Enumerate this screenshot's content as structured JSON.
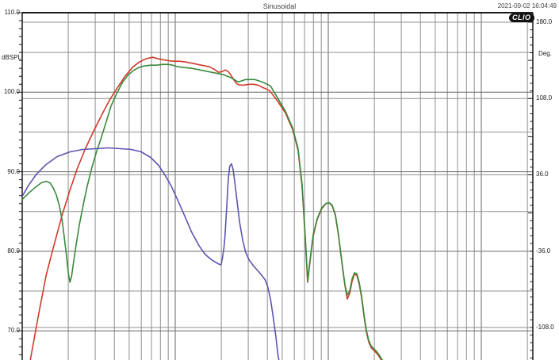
{
  "header": {
    "title": "Sinusoidal",
    "datetime": "2021-09-02 16:04:49",
    "logo": "CLIO"
  },
  "chart_data": {
    "type": "line",
    "title": "Sinusoidal",
    "x_axis": {
      "scale": "log",
      "unit": "Hz",
      "min_hz": 10,
      "max_hz": 21900,
      "decade_lines_hz": [
        100,
        1000,
        10000
      ],
      "minor_multiples": [
        2,
        3,
        4,
        5,
        6,
        7,
        8,
        9
      ],
      "extra_line_hz": 20000,
      "tick_labels_visible": false
    },
    "y_left": {
      "label": "dBSPL",
      "unit": "dB SPL",
      "visible_range": [
        66,
        110
      ],
      "tick_values": [
        110,
        100,
        90,
        80,
        70
      ],
      "tick_labels": [
        "110.0",
        "100.0",
        "90.0",
        "80.0",
        "70.0"
      ],
      "grid_step_db": 5,
      "minor_tick_db": 1
    },
    "y_right": {
      "label": "Deg.",
      "unit": "degrees",
      "visible_range": [
        -150,
        180
      ],
      "tick_values": [
        180,
        108,
        36,
        -36,
        -108
      ],
      "tick_labels": [
        "180.0",
        "108.0",
        "36.0",
        "-36.0",
        "-108.0"
      ],
      "grid_step_deg": 72,
      "minor_tick_deg": 7.2
    },
    "grid": "on",
    "legend": "none",
    "series": [
      {
        "name": "response-red",
        "color": "#cf3b2a",
        "points": [
          [
            11.3,
            66.3
          ],
          [
            12.7,
            71.7
          ],
          [
            14.3,
            76.9
          ],
          [
            16.1,
            80.7
          ],
          [
            18.2,
            84.5
          ],
          [
            20.5,
            87.7
          ],
          [
            23,
            90.5
          ],
          [
            26,
            93
          ],
          [
            29.3,
            95.1
          ],
          [
            33,
            97.1
          ],
          [
            37.2,
            99
          ],
          [
            42,
            100.6
          ],
          [
            47,
            102
          ],
          [
            53,
            103.2
          ],
          [
            58.4,
            103.8
          ],
          [
            64.3,
            104.2
          ],
          [
            70.9,
            104.4
          ],
          [
            78,
            104.2
          ],
          [
            87.7,
            104
          ],
          [
            96.5,
            103.9
          ],
          [
            106,
            103.9
          ],
          [
            117,
            103.8
          ],
          [
            132,
            103.6
          ],
          [
            148,
            103.4
          ],
          [
            167,
            103.2
          ],
          [
            179,
            102.9
          ],
          [
            192,
            102.5
          ],
          [
            203,
            102.6
          ],
          [
            212,
            102.8
          ],
          [
            222,
            102.6
          ],
          [
            230,
            102.2
          ],
          [
            241,
            101.6
          ],
          [
            251,
            101.1
          ],
          [
            263,
            100.9
          ],
          [
            282,
            100.9
          ],
          [
            304,
            101
          ],
          [
            325,
            101
          ],
          [
            347,
            100.9
          ],
          [
            372,
            100.6
          ],
          [
            394,
            100.4
          ],
          [
            414,
            100.2
          ],
          [
            466,
            98.9
          ],
          [
            525,
            97.4
          ],
          [
            585,
            95.3
          ],
          [
            635,
            92.7
          ],
          [
            674,
            88.2
          ],
          [
            707,
            81.7
          ],
          [
            733,
            76.1
          ],
          [
            760,
            78.7
          ],
          [
            797,
            81.9
          ],
          [
            846,
            84
          ],
          [
            909,
            85.4
          ],
          [
            965,
            86
          ],
          [
            1012,
            86.1
          ],
          [
            1061,
            85.7
          ],
          [
            1113,
            84.5
          ],
          [
            1168,
            81.9
          ],
          [
            1225,
            78.7
          ],
          [
            1285,
            75.7
          ],
          [
            1332,
            74
          ],
          [
            1380,
            74.7
          ],
          [
            1430,
            76.2
          ],
          [
            1482,
            77.1
          ],
          [
            1536,
            77
          ],
          [
            1592,
            75.9
          ],
          [
            1650,
            74.2
          ],
          [
            1710,
            71.9
          ],
          [
            1773,
            69.9
          ],
          [
            1838,
            68.6
          ],
          [
            1904,
            67.9
          ],
          [
            1974,
            67.6
          ],
          [
            2070,
            67.2
          ],
          [
            2145,
            66.8
          ],
          [
            2223,
            66.3
          ],
          [
            2277,
            66
          ]
        ]
      },
      {
        "name": "response-green",
        "color": "#3a8a3c",
        "points": [
          [
            10,
            86.5
          ],
          [
            11,
            87.3
          ],
          [
            12.1,
            88
          ],
          [
            13.3,
            88.6
          ],
          [
            14.3,
            88.8
          ],
          [
            15.2,
            88.6
          ],
          [
            15.9,
            88
          ],
          [
            16.7,
            87.1
          ],
          [
            17.5,
            85.7
          ],
          [
            18.2,
            84
          ],
          [
            18.8,
            81.9
          ],
          [
            19.5,
            79.3
          ],
          [
            20,
            77.3
          ],
          [
            20.5,
            76.1
          ],
          [
            21,
            76.8
          ],
          [
            21.7,
            78.7
          ],
          [
            22.5,
            80.8
          ],
          [
            23.6,
            83.3
          ],
          [
            25.1,
            85.9
          ],
          [
            26.6,
            88.2
          ],
          [
            28.6,
            90.6
          ],
          [
            30.7,
            92.6
          ],
          [
            33,
            94.4
          ],
          [
            35.4,
            96.3
          ],
          [
            38.1,
            98.3
          ],
          [
            41.6,
            99.9
          ],
          [
            45.1,
            101.2
          ],
          [
            48.9,
            102.1
          ],
          [
            53.1,
            102.7
          ],
          [
            57.7,
            103.1
          ],
          [
            62.7,
            103.3
          ],
          [
            68.9,
            103.4
          ],
          [
            75.7,
            103.4
          ],
          [
            83.2,
            103.5
          ],
          [
            89.9,
            103.5
          ],
          [
            96.5,
            103.4
          ],
          [
            104,
            103.2
          ],
          [
            115,
            103.1
          ],
          [
            129,
            103
          ],
          [
            145,
            102.8
          ],
          [
            163,
            102.6
          ],
          [
            184,
            102.4
          ],
          [
            207,
            102.2
          ],
          [
            227,
            101.9
          ],
          [
            243,
            101.6
          ],
          [
            257,
            101.3
          ],
          [
            269,
            101.4
          ],
          [
            288,
            101.6
          ],
          [
            309,
            101.6
          ],
          [
            331,
            101.6
          ],
          [
            356,
            101.4
          ],
          [
            380,
            101.2
          ],
          [
            399,
            101
          ],
          [
            419,
            100.8
          ],
          [
            466,
            99.3
          ],
          [
            525,
            97.6
          ],
          [
            585,
            95.5
          ],
          [
            635,
            92.9
          ],
          [
            674,
            88.5
          ],
          [
            707,
            82
          ],
          [
            733,
            76.3
          ],
          [
            760,
            78.9
          ],
          [
            797,
            82.1
          ],
          [
            846,
            84.1
          ],
          [
            909,
            85.5
          ],
          [
            965,
            86
          ],
          [
            1012,
            86.1
          ],
          [
            1061,
            85.8
          ],
          [
            1113,
            84.6
          ],
          [
            1168,
            82
          ],
          [
            1225,
            78.8
          ],
          [
            1285,
            75.8
          ],
          [
            1332,
            74.5
          ],
          [
            1380,
            75
          ],
          [
            1430,
            76.5
          ],
          [
            1482,
            77.3
          ],
          [
            1536,
            77.2
          ],
          [
            1592,
            76.1
          ],
          [
            1650,
            74.4
          ],
          [
            1710,
            72.1
          ],
          [
            1773,
            70.1
          ],
          [
            1838,
            68.8
          ],
          [
            1904,
            68.1
          ],
          [
            1974,
            67.8
          ],
          [
            2070,
            67.4
          ],
          [
            2145,
            67
          ],
          [
            2223,
            66.5
          ],
          [
            2277,
            66.2
          ]
        ]
      },
      {
        "name": "response-blue",
        "color": "#5c55b2",
        "points": [
          [
            10,
            86.9
          ],
          [
            11,
            88.3
          ],
          [
            12.4,
            89.7
          ],
          [
            14.3,
            90.9
          ],
          [
            16.9,
            91.9
          ],
          [
            20.5,
            92.5
          ],
          [
            24.8,
            92.8
          ],
          [
            30,
            92.9
          ],
          [
            36.3,
            93
          ],
          [
            44,
            92.9
          ],
          [
            51.9,
            92.8
          ],
          [
            59.9,
            92.5
          ],
          [
            69.1,
            91.8
          ],
          [
            77.8,
            90.8
          ],
          [
            85.6,
            89.6
          ],
          [
            94.2,
            88.2
          ],
          [
            104,
            86.4
          ],
          [
            115,
            84.5
          ],
          [
            128,
            82.4
          ],
          [
            143,
            80.7
          ],
          [
            157,
            79.6
          ],
          [
            171,
            79
          ],
          [
            181,
            78.7
          ],
          [
            192,
            78.4
          ],
          [
            199,
            78.3
          ],
          [
            203,
            79
          ],
          [
            208,
            80.4
          ],
          [
            211,
            81.7
          ],
          [
            217,
            85.5
          ],
          [
            222,
            88.9
          ],
          [
            227,
            90.7
          ],
          [
            233,
            91
          ],
          [
            239,
            90.3
          ],
          [
            245,
            88.7
          ],
          [
            254,
            86.2
          ],
          [
            263,
            83.7
          ],
          [
            276,
            81.4
          ],
          [
            288,
            79.9
          ],
          [
            304,
            78.9
          ],
          [
            324,
            78.2
          ],
          [
            345,
            77.6
          ],
          [
            367,
            77
          ],
          [
            387,
            76.4
          ],
          [
            403,
            75.5
          ],
          [
            420,
            73.9
          ],
          [
            437,
            71.7
          ],
          [
            455,
            69.2
          ],
          [
            469,
            67
          ],
          [
            476,
            66.3
          ]
        ]
      }
    ]
  },
  "colors": {
    "background": "#ffffff",
    "grid_minor": "#909090",
    "grid_decade": "#666666",
    "border": "#1a1a1a",
    "text": "#222222"
  }
}
